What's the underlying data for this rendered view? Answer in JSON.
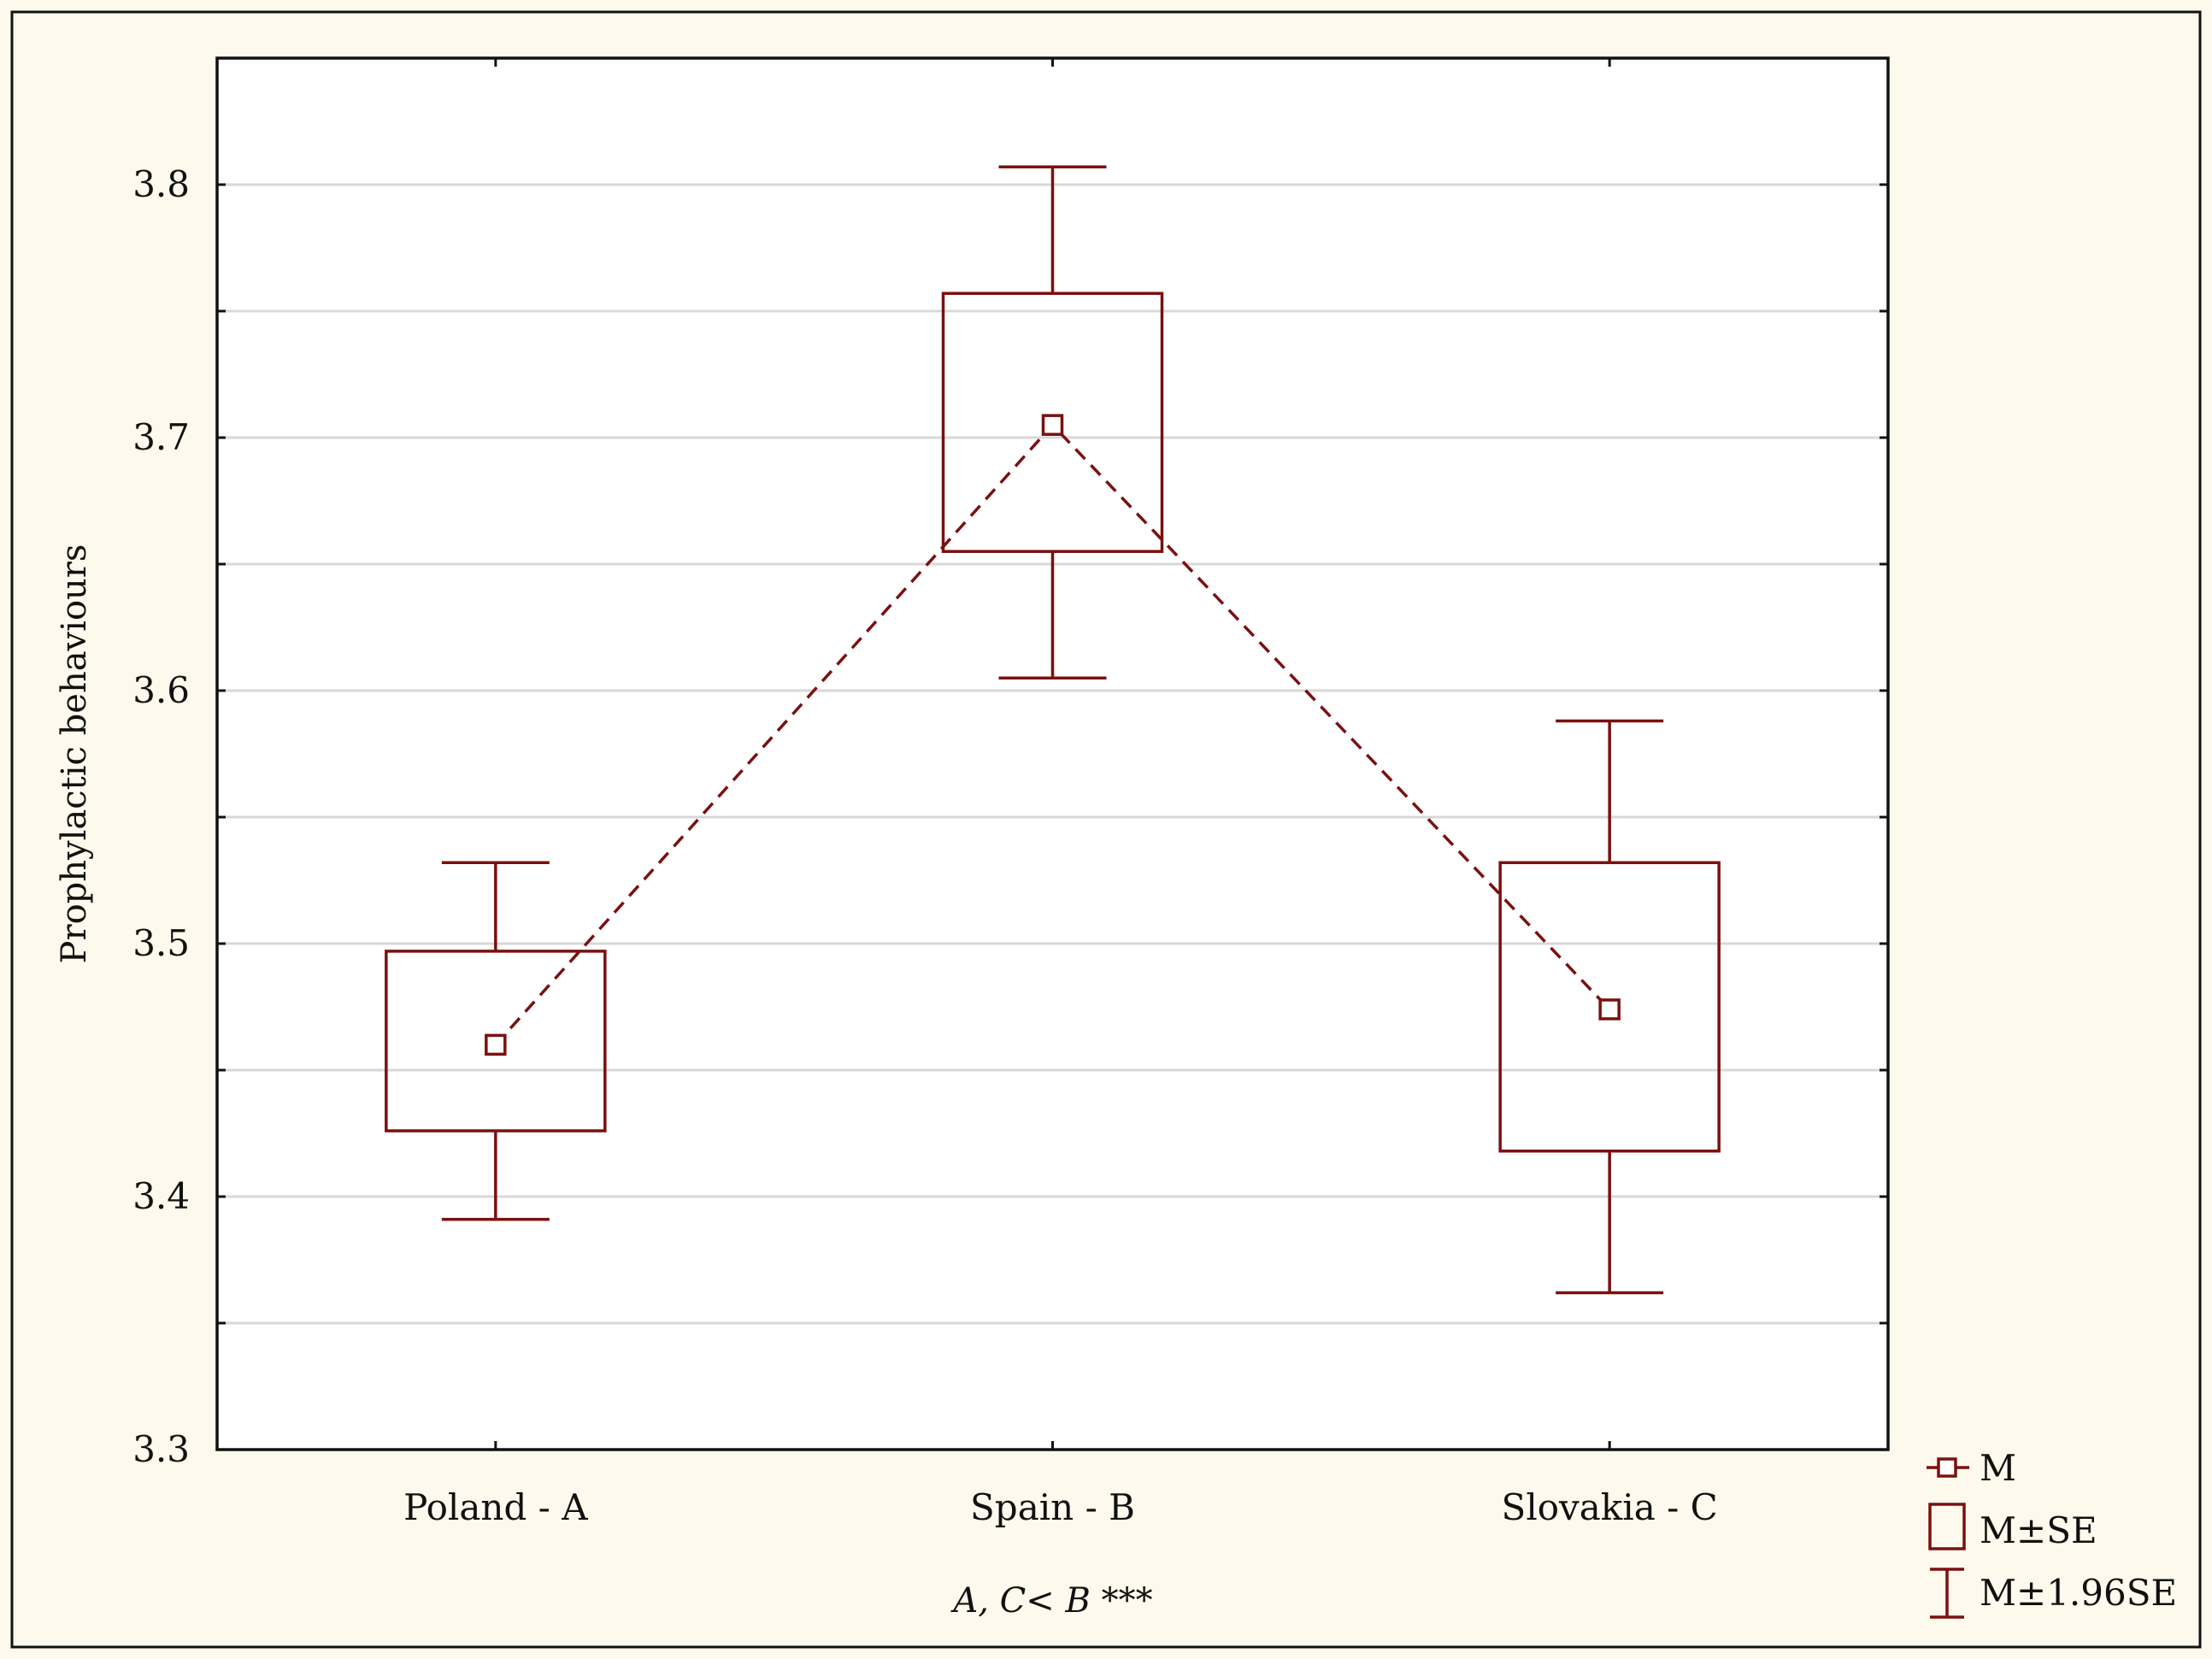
{
  "chart_data": {
    "type": "box",
    "categories": [
      "Poland - A",
      "Spain - B",
      "Slovakia - C"
    ],
    "series": [
      {
        "name": "M",
        "values": [
          3.46,
          3.705,
          3.474
        ]
      },
      {
        "name": "M±SE",
        "lower": [
          3.426,
          3.655,
          3.418
        ],
        "upper": [
          3.497,
          3.757,
          3.532
        ]
      },
      {
        "name": "M±1.96SE",
        "lower": [
          3.391,
          3.605,
          3.362
        ],
        "upper": [
          3.532,
          3.807,
          3.588
        ]
      }
    ],
    "ylabel": "Prophylactic behaviours",
    "xlabel": "",
    "ylim": [
      3.3,
      3.85
    ],
    "yticks": [
      "3.3",
      "3.4",
      "3.5",
      "3.6",
      "3.7",
      "3.8"
    ],
    "annotation": "A, C< B ***",
    "grid": true,
    "legend_position": "bottom-right",
    "colors": {
      "series": "#7b1010",
      "grid": "#d8d8d8",
      "background": "#fdf9ec",
      "plot_background": "#ffffff"
    }
  }
}
